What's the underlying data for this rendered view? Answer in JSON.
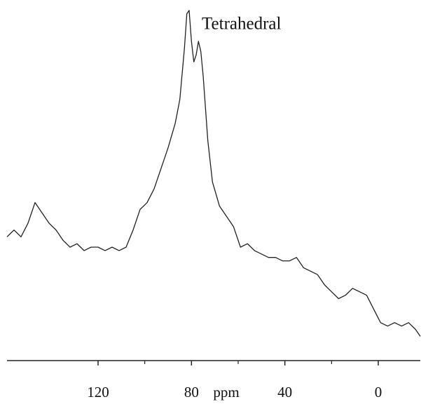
{
  "chart_data": {
    "type": "line",
    "annotation": "Tetrahedral",
    "x_label": "ppm",
    "x": [
      159,
      156,
      153,
      150,
      147,
      144,
      141,
      138,
      135,
      132,
      129,
      126,
      123,
      120,
      117,
      114,
      111,
      108,
      105,
      102,
      99,
      96,
      93,
      90,
      87,
      85,
      83,
      82,
      81,
      80,
      79,
      78,
      77,
      76,
      75,
      73,
      71,
      68,
      65,
      62,
      59,
      56,
      53,
      50,
      47,
      44,
      41,
      38,
      35,
      32,
      29,
      26,
      23,
      20,
      17,
      14,
      11,
      8,
      5,
      2,
      -1,
      -4,
      -7,
      -10,
      -13,
      -16,
      -18
    ],
    "values": [
      33,
      35,
      33,
      37,
      43,
      40,
      37,
      35,
      32,
      30,
      31,
      29,
      30,
      30,
      29,
      30,
      29,
      30,
      35,
      41,
      43,
      47,
      53,
      59,
      66,
      73,
      88,
      98,
      99,
      90,
      84,
      86,
      90,
      87,
      80,
      61,
      49,
      42,
      39,
      36,
      30,
      31,
      29,
      28,
      27,
      27,
      26,
      26,
      27,
      24,
      23,
      22,
      19,
      17,
      15,
      16,
      18,
      17,
      16,
      12,
      8,
      7,
      8,
      7,
      8,
      6,
      4
    ],
    "color": "#222222",
    "xlim": [
      159,
      -18
    ],
    "ylim": [
      0,
      100
    ],
    "xticks": [
      120,
      80,
      40,
      0
    ],
    "xminor_ticks": [
      100,
      60,
      20
    ]
  }
}
